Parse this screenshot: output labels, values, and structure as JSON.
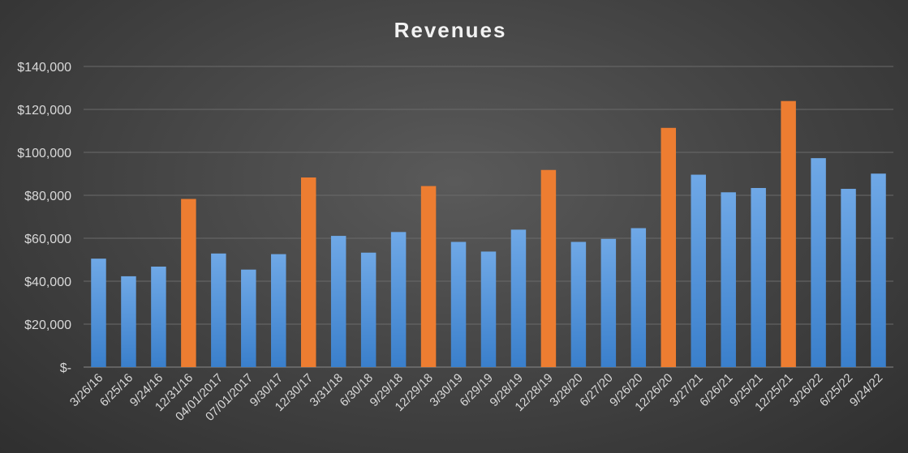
{
  "chart_data": {
    "type": "bar",
    "title": "Revenues",
    "xlabel": "",
    "ylabel": "",
    "ylim": [
      0,
      140000
    ],
    "grid": true,
    "y_ticks": [
      {
        "value": 0,
        "label": "$-"
      },
      {
        "value": 20000,
        "label": "$20,000"
      },
      {
        "value": 40000,
        "label": "$40,000"
      },
      {
        "value": 60000,
        "label": "$60,000"
      },
      {
        "value": 80000,
        "label": "$80,000"
      },
      {
        "value": 100000,
        "label": "$100,000"
      },
      {
        "value": 120000,
        "label": "$120,000"
      },
      {
        "value": 140000,
        "label": "$140,000"
      }
    ],
    "categories": [
      "3/26/16",
      "6/25/16",
      "9/24/16",
      "12/31/16",
      "04/01/2017",
      "07/01/2017",
      "9/30/17",
      "12/30/17",
      "3/31/18",
      "6/30/18",
      "9/29/18",
      "12/29/18",
      "3/30/19",
      "6/29/19",
      "9/28/19",
      "12/28/19",
      "3/28/20",
      "6/27/20",
      "9/26/20",
      "12/26/20",
      "3/27/21",
      "6/26/21",
      "9/25/21",
      "12/25/21",
      "3/26/22",
      "6/25/22",
      "9/24/22"
    ],
    "values": [
      50500,
      42300,
      46800,
      78300,
      52900,
      45400,
      52600,
      88300,
      61100,
      53300,
      62900,
      84300,
      58300,
      53800,
      64000,
      91800,
      58300,
      59700,
      64700,
      111400,
      89600,
      81400,
      83400,
      123900,
      97300,
      83000,
      90100
    ],
    "highlight": [
      false,
      false,
      false,
      true,
      false,
      false,
      false,
      true,
      false,
      false,
      false,
      true,
      false,
      false,
      false,
      true,
      false,
      false,
      false,
      true,
      false,
      false,
      false,
      true,
      false,
      false,
      false
    ],
    "colors": {
      "regular_top": "#6fa8e6",
      "regular_bottom": "#3a7fcb",
      "highlight": "#ed7d31"
    }
  }
}
